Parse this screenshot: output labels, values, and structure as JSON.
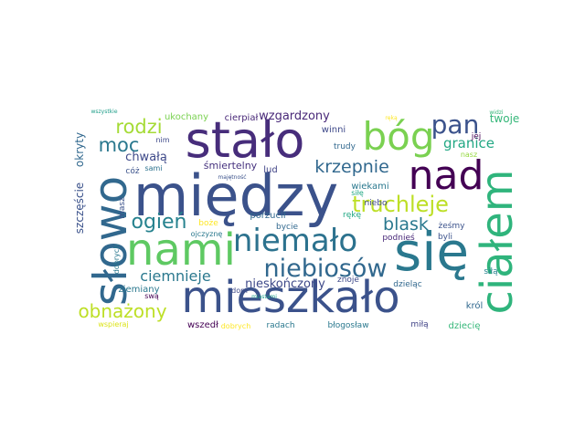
{
  "words": [
    {
      "text": "między",
      "color": "#3b528b"
    },
    {
      "text": "stało",
      "color": "#472d7b"
    },
    {
      "text": "nami",
      "color": "#5ec962"
    },
    {
      "text": "się",
      "color": "#2a788e"
    },
    {
      "text": "słowo",
      "color": "#31688e"
    },
    {
      "text": "ciałem",
      "color": "#2fb47c"
    },
    {
      "text": "mieszkało",
      "color": "#3b528b"
    },
    {
      "text": "bóg",
      "color": "#7ad151"
    },
    {
      "text": "nad",
      "color": "#440154"
    },
    {
      "text": "niemało",
      "color": "#2c728e"
    },
    {
      "text": "pan",
      "color": "#3b528b"
    },
    {
      "text": "niebiosów",
      "color": "#31688e"
    },
    {
      "text": "truchleje",
      "color": "#bddf26"
    },
    {
      "text": "krzepnie",
      "color": "#31688e"
    },
    {
      "text": "moc",
      "color": "#2a788e"
    },
    {
      "text": "rodzi",
      "color": "#a5db36"
    },
    {
      "text": "ogień",
      "color": "#26828e"
    },
    {
      "text": "blask",
      "color": "#2a788e"
    },
    {
      "text": "ciemnieje",
      "color": "#2a788e"
    },
    {
      "text": "obnażony",
      "color": "#bddf26"
    },
    {
      "text": "granice",
      "color": "#22a884"
    },
    {
      "text": "wzgardzony",
      "color": "#482878"
    },
    {
      "text": "nieskończony",
      "color": "#3e4989"
    },
    {
      "text": "chwałą",
      "color": "#3e4989"
    },
    {
      "text": "śmiertelny",
      "color": "#46327e"
    },
    {
      "text": "szczęście",
      "color": "#3b528b"
    },
    {
      "text": "okryty",
      "color": "#31688e"
    },
    {
      "text": "twoje",
      "color": "#35b779"
    },
    {
      "text": "ukochany",
      "color": "#7ad151"
    },
    {
      "text": "cierpiał",
      "color": "#482878"
    },
    {
      "text": "winni",
      "color": "#3e4989"
    },
    {
      "text": "trudy",
      "color": "#31688e"
    },
    {
      "text": "lud",
      "color": "#414487"
    },
    {
      "text": "porzucił",
      "color": "#31688e"
    },
    {
      "text": "bycie",
      "color": "#31688e"
    },
    {
      "text": "wiekami",
      "color": "#2a788e"
    },
    {
      "text": "siłę",
      "color": "#22a884"
    },
    {
      "text": "ziemiany",
      "color": "#2a788e"
    },
    {
      "text": "wszedł",
      "color": "#440154"
    },
    {
      "text": "dobrych",
      "color": "#fde725"
    },
    {
      "text": "radach",
      "color": "#2a788e"
    },
    {
      "text": "błogosław",
      "color": "#2a788e"
    },
    {
      "text": "miłą",
      "color": "#414487"
    },
    {
      "text": "dziecię",
      "color": "#35b779"
    },
    {
      "text": "król",
      "color": "#31688e"
    },
    {
      "text": "siłą",
      "color": "#26828e"
    },
    {
      "text": "dzieląc",
      "color": "#31688e"
    },
    {
      "text": "byli",
      "color": "#3b528b"
    },
    {
      "text": "podnieś",
      "color": "#482878"
    },
    {
      "text": "żeśmy",
      "color": "#3b528b"
    },
    {
      "text": "niebo",
      "color": "#3e4989"
    },
    {
      "text": "rękę",
      "color": "#22a884"
    },
    {
      "text": "znoje",
      "color": "#3e4989"
    },
    {
      "text": "jej",
      "color": "#440154"
    },
    {
      "text": "nasz",
      "color": "#95d840"
    },
    {
      "text": "masz",
      "color": "#3b528b"
    },
    {
      "text": "cóż",
      "color": "#3b528b"
    },
    {
      "text": "sami",
      "color": "#2c728e"
    },
    {
      "text": "nim",
      "color": "#3e4989"
    },
    {
      "text": "boże",
      "color": "#fde725"
    },
    {
      "text": "ojczyznę",
      "color": "#2a788e"
    },
    {
      "text": "dobrych",
      "color": "#2a788e"
    },
    {
      "text": "swą",
      "color": "#440154"
    },
    {
      "text": "wspieraj",
      "color": "#dce319"
    },
    {
      "text": "dom",
      "color": "#3e4989"
    },
    {
      "text": "majętność",
      "color": "#3b528b"
    },
    {
      "text": "wszystkie",
      "color": "#1f9e89"
    },
    {
      "text": "ręką",
      "color": "#fde725"
    },
    {
      "text": "widzi",
      "color": "#35b779"
    },
    {
      "text": "miastami",
      "color": "#1f9e89"
    }
  ]
}
